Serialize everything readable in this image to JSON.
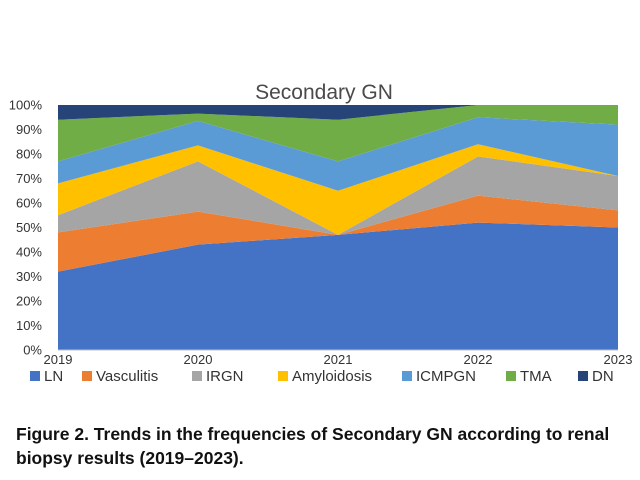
{
  "chart_data": {
    "type": "area",
    "stacked": true,
    "title": "Secondary GN",
    "x": [
      "2019",
      "2020",
      "2021",
      "2022",
      "2023"
    ],
    "y_ticks": [
      "0%",
      "10%",
      "20%",
      "30%",
      "40%",
      "50%",
      "60%",
      "70%",
      "80%",
      "90%",
      "100%"
    ],
    "ylim": [
      0,
      100
    ],
    "grid": false,
    "legend_position": "bottom",
    "series": [
      {
        "name": "LN",
        "color": "#4472C4",
        "values": [
          32,
          43,
          47,
          52,
          50
        ]
      },
      {
        "name": "Vasculitis",
        "color": "#ED7D31",
        "values": [
          16,
          13.5,
          0,
          11,
          7
        ]
      },
      {
        "name": "IRGN",
        "color": "#A5A5A5",
        "values": [
          7,
          20.5,
          0,
          16,
          14
        ]
      },
      {
        "name": "Amyloidosis",
        "color": "#FFC000",
        "values": [
          13,
          6.5,
          18,
          5,
          0
        ]
      },
      {
        "name": "ICMPGN",
        "color": "#5B9BD5",
        "values": [
          9,
          10,
          12,
          11,
          21
        ]
      },
      {
        "name": "TMA",
        "color": "#70AD47",
        "values": [
          17,
          3,
          17,
          5,
          8
        ]
      },
      {
        "name": "DN",
        "color": "#264478",
        "values": [
          6,
          3.5,
          6,
          0,
          0
        ]
      }
    ]
  },
  "caption": "Figure 2. Trends in the frequencies of Secondary GN according to renal biopsy results (2019–2023)."
}
